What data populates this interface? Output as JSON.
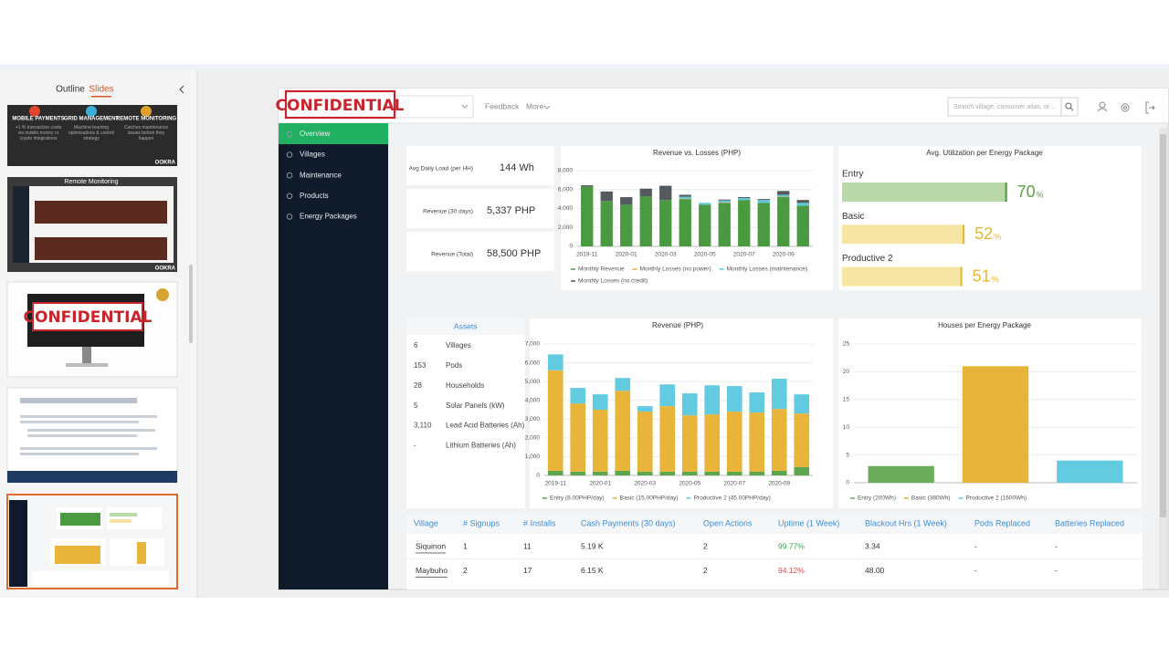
{
  "app": {
    "tabs": [
      "Outline",
      "Slides"
    ],
    "thumbnails": {
      "slide1": [
        "MOBILE PAYMENTS",
        "GRID MANAGEMENT",
        "REMOTE MONITORING",
        "+1 % transaction costs via mobile money or crypto integrations",
        "Machine learning optimisations & control strategy",
        "Catches maintenance issues before they happen",
        "OOKRA"
      ],
      "slide2": [
        "Remote Monitoring",
        "OOKRA"
      ],
      "slide3": [
        "CONFIDENTIAL"
      ]
    }
  },
  "dashboard": {
    "stamp": "CONFIDENTIAL",
    "topbar": {
      "feedback": "Feedback",
      "more": "More",
      "search_placeholder": "Search village, consumer alias, or ..."
    },
    "sidebar": [
      "Overview",
      "Villages",
      "Maintenance",
      "Products",
      "Energy Packages"
    ],
    "kpis": [
      {
        "label": "Avg Daily Load (per HH)",
        "value": "144 Wh"
      },
      {
        "label": "Revenue (30 days)",
        "value": "5,337 PHP"
      },
      {
        "label": "Revenue (Total)",
        "value": "58,500 PHP"
      }
    ],
    "charts": [
      {
        "type": "bar",
        "stacked": true,
        "title": "Revenue vs. Losses (PHP)",
        "categories": [
          "2019-11",
          null,
          "2020-01",
          null,
          "2020-03",
          null,
          "2020-05",
          null,
          "2020-07",
          null,
          "2020-09",
          null
        ],
        "series": [
          {
            "name": "Monthly Revenue",
            "color": "#4a9a42",
            "values": [
              6300,
              4800,
              4400,
              5300,
              4900,
              5000,
              4400,
              4600,
              4900,
              4600,
              5200,
              4300
            ]
          },
          {
            "name": "Monthly Losses (no power)",
            "color": "#f0a33a",
            "values": [
              0,
              0,
              0,
              0,
              0,
              50,
              0,
              50,
              0,
              0,
              50,
              0
            ]
          },
          {
            "name": "Monthly Losses (maintenance)",
            "color": "#5bc8d8",
            "values": [
              0,
              0,
              0,
              0,
              0,
              200,
              200,
              200,
              200,
              300,
              200,
              300
            ]
          },
          {
            "name": "Monthly Losses (no credit)",
            "color": "#555a5e",
            "values": [
              150,
              1000,
              800,
              800,
              1500,
              200,
              0,
              100,
              100,
              100,
              400,
              300
            ]
          }
        ],
        "ylim": [
          0,
          8000
        ],
        "yticks": [
          0,
          {
            "value": 2000,
            "label": "2,000"
          },
          {
            "value": 4000,
            "label": "4,000"
          },
          {
            "value": 6000,
            "label": "6,000"
          },
          {
            "value": 8000,
            "label": "8,000"
          }
        ],
        "grid": true
      },
      {
        "type": "bar",
        "stacked": true,
        "title": "Revenue (PHP)",
        "categories": [
          "2019-11",
          null,
          "2020-01",
          null,
          "2020-03",
          null,
          "2020-05",
          null,
          "2020-07",
          null,
          "2020-09",
          null
        ],
        "series": [
          {
            "name": "Entry (8.00PHP/day)",
            "color": "#5ea64d",
            "values": [
              250,
              200,
              200,
              250,
              200,
              200,
              200,
              200,
              200,
              200,
              250,
              450
            ]
          },
          {
            "name": "Basic (15.00PHP/day)",
            "color": "#e9b43a",
            "values": [
              5350,
              3630,
              3300,
              4260,
              3200,
              3490,
              3000,
              3050,
              3200,
              3150,
              3290,
              2850
            ]
          },
          {
            "name": "Productive 2 (45.00PHP/day)",
            "color": "#62cbe0",
            "values": [
              850,
              830,
              820,
              680,
              290,
              1160,
              1170,
              1550,
              1360,
              1070,
              1610,
              1020
            ]
          }
        ],
        "ylim": [
          0,
          7000
        ],
        "yticks": [
          0,
          {
            "value": 1000,
            "label": "1,000"
          },
          {
            "value": 2000,
            "label": "2,000"
          },
          {
            "value": 3000,
            "label": "3,000"
          },
          {
            "value": 4000,
            "label": "4,000"
          },
          {
            "value": 5000,
            "label": "5,000"
          },
          {
            "value": 6000,
            "label": "6,000"
          },
          {
            "value": 7000,
            "label": "7,000"
          }
        ],
        "grid": true
      },
      {
        "type": "bar",
        "stacked": false,
        "title": "Houses per Energy Package",
        "categories": [
          null
        ],
        "series": [
          {
            "name": "Entry (200Wh)",
            "color": "#6aac5a",
            "values": [
              3
            ]
          },
          {
            "name": "Basic (380Wh)",
            "color": "#e9b43a",
            "values": [
              21
            ]
          },
          {
            "name": "Productive 2 (1600Wh)",
            "color": "#62cbe0",
            "values": [
              4
            ]
          }
        ],
        "ylim": [
          0,
          25
        ],
        "yticks": [
          0,
          5,
          10,
          15,
          20,
          25
        ],
        "grid": true
      }
    ],
    "utilization": {
      "title": "Avg. Utilization per Energy Package",
      "xlim": [
        0,
        100
      ],
      "items": [
        {
          "name": "Entry",
          "value": 70,
          "unit": "%",
          "color": "#b9d9ab",
          "edge": "#4a9b3c",
          "text_color": "#5aa043"
        },
        {
          "name": "Basic",
          "value": 52,
          "unit": "%",
          "color": "#f7e6a3",
          "edge": "#e2b52b",
          "text_color": "#e8b72d"
        },
        {
          "name": "Productive 2",
          "value": 51,
          "unit": "%",
          "color": "#f7e6a3",
          "edge": "#e2b52b",
          "text_color": "#e8b72d"
        }
      ]
    },
    "assets": {
      "title": "Assets",
      "rows": [
        [
          "6",
          "Villages"
        ],
        [
          "153",
          "Pods"
        ],
        [
          "28",
          "Households"
        ],
        [
          "5",
          "Solar Panels (kW)"
        ],
        [
          "3,110",
          "Lead Acid Batteries (Ah)"
        ],
        [
          "-",
          "Lithium Batteries (Ah)"
        ]
      ]
    },
    "table": {
      "columns": [
        "Village",
        "# Signups",
        "# Installs",
        "Cash Payments (30 days)",
        "Open Actions",
        "Uptime (1 Week)",
        "Blackout Hrs (1 Week)",
        "Pods Replaced",
        "Batteries Replaced"
      ],
      "rows": [
        [
          "Siquinon",
          "1",
          "11",
          "5.19 K",
          "2",
          "99.77%",
          "3.34",
          "-",
          "-"
        ],
        [
          "Maybuho",
          "2",
          "17",
          "6.15 K",
          "2",
          "94.12%",
          "48.00",
          "-",
          "-"
        ]
      ],
      "uptime_colors": [
        "#2aa84a",
        "#e0474c"
      ]
    }
  }
}
